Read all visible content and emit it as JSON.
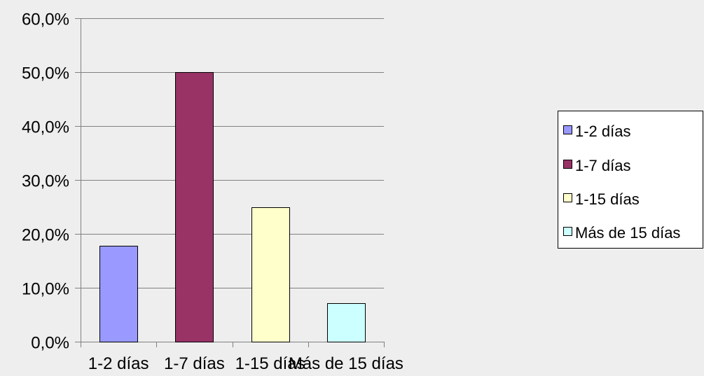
{
  "chart_data": {
    "type": "bar",
    "categories": [
      "1-2 días",
      "1-7 días",
      "1-15 días",
      "Más de 15 días"
    ],
    "values": [
      17.8,
      50.0,
      25.0,
      7.1
    ],
    "series": [
      {
        "name": "1-2 días",
        "value": 17.8,
        "color": "#9999ff"
      },
      {
        "name": "1-7 días",
        "value": 50.0,
        "color": "#993366"
      },
      {
        "name": "1-15 días",
        "value": 25.0,
        "color": "#ffffcc"
      },
      {
        "name": "Más de 15 días",
        "value": 7.1,
        "color": "#ccffff"
      }
    ],
    "ylim": [
      0,
      60
    ],
    "y_ticks": [
      0,
      10,
      20,
      30,
      40,
      50,
      60
    ],
    "y_tick_labels": [
      "0,0%",
      "10,0%",
      "20,0%",
      "30,0%",
      "40,0%",
      "50,0%",
      "60,0%"
    ],
    "grid": true,
    "legend_position": "right",
    "title": "",
    "xlabel": "",
    "ylabel": ""
  }
}
